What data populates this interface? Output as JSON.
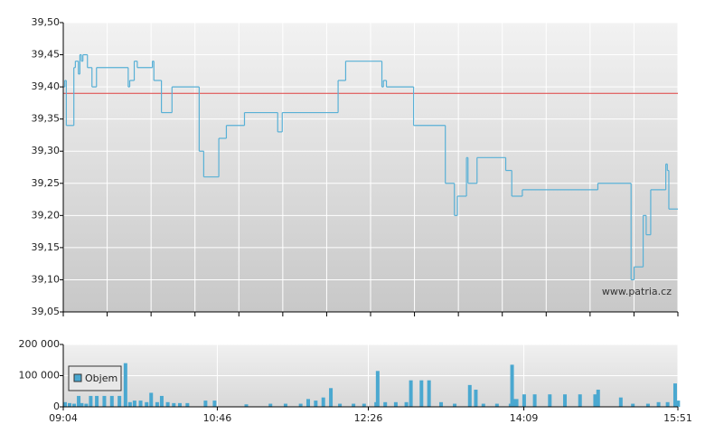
{
  "chart_data": [
    {
      "type": "line",
      "xlim": [
        "09:04",
        "15:51"
      ],
      "ylim": [
        39.05,
        39.5
      ],
      "yticks": [
        {
          "value": 39.05,
          "label": "39,05"
        },
        {
          "value": 39.1,
          "label": "39,10"
        },
        {
          "value": 39.15,
          "label": "39,15"
        },
        {
          "value": 39.2,
          "label": "39,20"
        },
        {
          "value": 39.25,
          "label": "39,25"
        },
        {
          "value": 39.3,
          "label": "39,30"
        },
        {
          "value": 39.35,
          "label": "39,35"
        },
        {
          "value": 39.4,
          "label": "39,40"
        },
        {
          "value": 39.45,
          "label": "39,45"
        },
        {
          "value": 39.5,
          "label": "39,50"
        }
      ],
      "grid": true,
      "reference_line": 39.39,
      "reference_color": "#e04040",
      "annotation": "www.patria.cz",
      "x": [
        "09:04",
        "09:05",
        "09:06",
        "09:11",
        "09:12",
        "09:14",
        "09:15",
        "09:16",
        "09:17",
        "09:20",
        "09:23",
        "09:26",
        "09:47",
        "09:48",
        "09:51",
        "09:53",
        "10:03",
        "10:04",
        "10:09",
        "10:16",
        "10:34",
        "10:37",
        "10:47",
        "10:52",
        "11:04",
        "11:26",
        "11:29",
        "12:06",
        "12:11",
        "12:35",
        "12:36",
        "12:38",
        "12:56",
        "13:17",
        "13:23",
        "13:25",
        "13:31",
        "13:32",
        "13:38",
        "13:57",
        "14:01",
        "14:08",
        "14:58",
        "15:20",
        "15:22",
        "15:28",
        "15:30",
        "15:33",
        "15:43",
        "15:44",
        "15:45"
      ],
      "series": [
        {
          "color": "#58b0d6",
          "values": [
            39.4,
            39.41,
            39.34,
            39.43,
            39.44,
            39.42,
            39.45,
            39.44,
            39.45,
            39.43,
            39.4,
            39.43,
            39.4,
            39.41,
            39.44,
            39.43,
            39.44,
            39.41,
            39.36,
            39.4,
            39.3,
            39.26,
            39.32,
            39.34,
            39.36,
            39.33,
            39.36,
            39.41,
            39.44,
            39.4,
            39.41,
            39.4,
            39.34,
            39.25,
            39.2,
            39.23,
            39.29,
            39.25,
            39.29,
            39.27,
            39.23,
            39.24,
            39.25,
            39.1,
            39.12,
            39.2,
            39.17,
            39.24,
            39.28,
            39.27,
            39.21
          ]
        }
      ]
    },
    {
      "type": "bar",
      "xlim": [
        "09:04",
        "15:51"
      ],
      "xticks": [
        "09:04",
        "10:46",
        "12:26",
        "14:09",
        "15:51"
      ],
      "ylim": [
        0,
        200000
      ],
      "yticks": [
        0,
        {
          "value": 100000,
          "label": "100 000"
        },
        {
          "value": 200000,
          "label": "200 000"
        }
      ],
      "grid": true,
      "x": [
        "09:04",
        "09:07",
        "09:10",
        "09:13",
        "09:15",
        "09:18",
        "09:21",
        "09:25",
        "09:30",
        "09:35",
        "09:40",
        "09:44",
        "09:47",
        "09:50",
        "09:54",
        "09:58",
        "10:01",
        "10:05",
        "10:08",
        "10:12",
        "10:16",
        "10:20",
        "10:25",
        "10:37",
        "10:43",
        "11:04",
        "11:20",
        "11:30",
        "11:40",
        "11:45",
        "11:50",
        "11:55",
        "12:00",
        "12:06",
        "12:15",
        "12:22",
        "12:30",
        "12:31",
        "12:36",
        "12:43",
        "12:50",
        "12:53",
        "13:00",
        "13:05",
        "13:13",
        "13:22",
        "13:32",
        "13:36",
        "13:41",
        "13:50",
        "13:59",
        "14:00",
        "14:01",
        "14:03",
        "14:08",
        "14:15",
        "14:25",
        "14:35",
        "14:45",
        "14:55",
        "14:57",
        "15:12",
        "15:20",
        "15:30",
        "15:37",
        "15:43",
        "15:48",
        "15:50"
      ],
      "series": [
        {
          "name": "Objem",
          "color": "#4aa8d0",
          "values": [
            15000,
            12000,
            10000,
            35000,
            12000,
            10000,
            35000,
            35000,
            35000,
            35000,
            35000,
            140000,
            15000,
            20000,
            20000,
            15000,
            45000,
            15000,
            35000,
            15000,
            12000,
            12000,
            12000,
            20000,
            20000,
            8000,
            10000,
            10000,
            10000,
            25000,
            20000,
            30000,
            60000,
            10000,
            10000,
            10000,
            15000,
            115000,
            15000,
            15000,
            15000,
            85000,
            85000,
            85000,
            15000,
            10000,
            70000,
            55000,
            10000,
            10000,
            10000,
            135000,
            25000,
            25000,
            40000,
            40000,
            40000,
            40000,
            40000,
            40000,
            55000,
            30000,
            10000,
            10000,
            15000,
            15000,
            75000,
            20000
          ]
        }
      ]
    }
  ]
}
